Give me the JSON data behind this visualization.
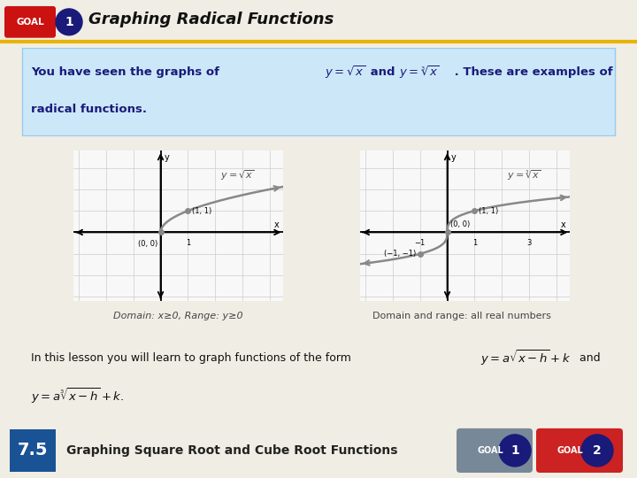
{
  "title": "Graphing Radical Functions",
  "bg_color": "#f0ede4",
  "header_bg": "#ffffff",
  "header_line_color": "#e8b400",
  "goal_red": "#cc1111",
  "goal_blue_dark": "#1a1a7a",
  "blue_box_bg": "#cce8f8",
  "blue_box_border": "#99ccee",
  "text_dark_blue": "#1a1a7a",
  "graph_bg": "#f8f8f8",
  "graph_grid_color": "#cccccc",
  "graph_curve_color": "#888888",
  "footer_bg": "#ddd8c8",
  "footer_text_color": "#222222",
  "footer_blue": "#1a5296",
  "footer_goal1_bg": "#778899",
  "footer_goal2_bg": "#cc2222",
  "domain1_text": "Domain: x≥0, Range: y≥0",
  "domain2_text": "Domain and range: all real numbers",
  "footer_text": "Graphing Square Root and Cube Root Functions",
  "footer_number": "7.5"
}
